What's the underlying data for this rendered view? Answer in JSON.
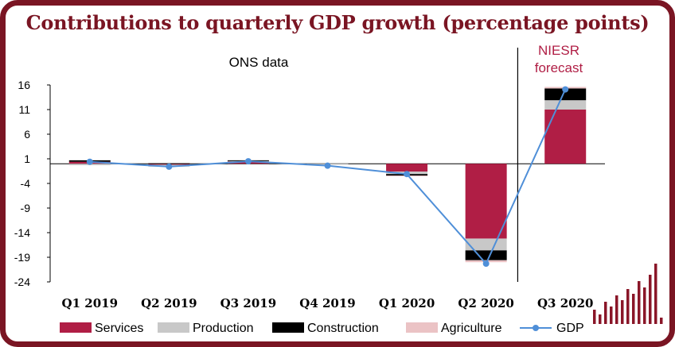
{
  "chart_data": {
    "type": "bar",
    "title": "Contributions to quarterly GDP growth (percentage points)",
    "categories": [
      "Q1 2019",
      "Q2 2019",
      "Q3 2019",
      "Q4 2019",
      "Q1 2020",
      "Q2 2020",
      "Q3 2020"
    ],
    "ylim": [
      -24,
      16
    ],
    "yticks": [
      16,
      11,
      6,
      1,
      -4,
      -9,
      -14,
      -19,
      -24
    ],
    "annotations": {
      "left": "ONS data",
      "right_line1": "NIESR",
      "right_line2": "forecast"
    },
    "series": [
      {
        "name": "Services",
        "color": "#b01e45",
        "values": [
          0.4,
          -0.2,
          0.5,
          0.0,
          -1.6,
          -15.2,
          11.0
        ]
      },
      {
        "name": "Production",
        "color": "#c8c8c8",
        "values": [
          -0.3,
          -0.4,
          0.1,
          -0.1,
          -0.5,
          -2.4,
          1.9
        ]
      },
      {
        "name": "Construction",
        "color": "#000000",
        "values": [
          0.3,
          0.1,
          0.1,
          0.0,
          -0.3,
          -2.0,
          2.4
        ]
      },
      {
        "name": "Agriculture",
        "color": "#ebc3c5",
        "values": [
          0.0,
          0.0,
          0.0,
          0.0,
          -0.1,
          -0.4,
          0.3
        ]
      }
    ],
    "line": {
      "name": "GDP",
      "color": "#4f8fd8",
      "values": [
        0.4,
        -0.6,
        0.5,
        -0.4,
        -2.1,
        -20.3,
        15.1
      ]
    }
  }
}
